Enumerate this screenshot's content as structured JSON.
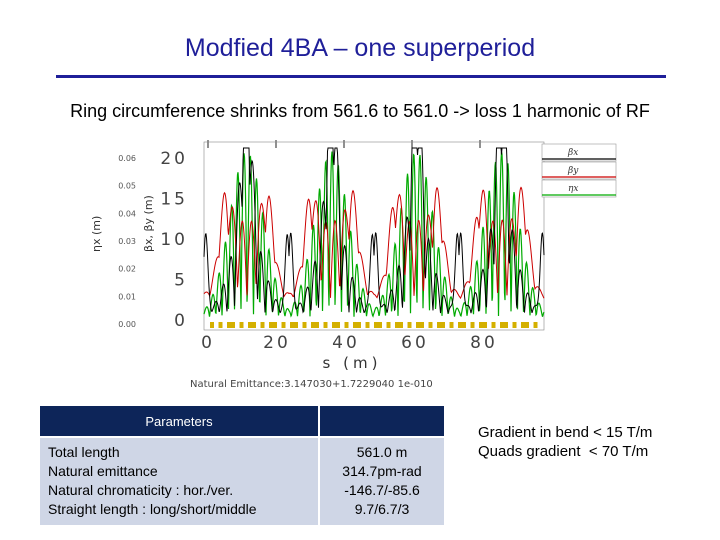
{
  "slide": {
    "title": "Modfied 4BA – one superperiod",
    "subtitle": "Ring circumference shrinks from 561.6 to 561.0 -> loss 1 harmonic of RF"
  },
  "plot": {
    "y_left_label": "ηx (m)",
    "y_mid_label": "βx, βy (m)",
    "x_label": "s (m)",
    "footer": "Natural Emittance:3.147030+1.7229040 1e-010",
    "y_left_ticks": [
      "0.06",
      "0.05",
      "0.04",
      "0.03",
      "0.02",
      "0.01",
      "0.00"
    ],
    "y_mid_ticks": [
      "20",
      "15",
      "10",
      "5",
      "0"
    ],
    "x_ticks": [
      "0",
      "20",
      "40",
      "60",
      "80"
    ],
    "legend": [
      {
        "label": "βx",
        "color": "#000000"
      },
      {
        "label": "βy",
        "color": "#cc0000"
      },
      {
        "label": "ηx",
        "color": "#00aa00"
      }
    ],
    "colors": {
      "beta_x": "#000000",
      "beta_y": "#cc0000",
      "eta_x": "#00aa00",
      "magnet": "#d4b000"
    }
  },
  "table": {
    "header_left": "Parameters",
    "header_right": "",
    "rows": [
      {
        "label": "Total length",
        "value": "561.0 m"
      },
      {
        "label": "Natural emittance",
        "value": "314.7pm-rad"
      },
      {
        "label": "Natural chromaticity  : hor./ver.",
        "value": "-146.7/-85.6"
      },
      {
        "label": "Straight length  : long/short/middle",
        "value": "9.7/6.7/3"
      }
    ]
  },
  "notes": {
    "line1": "Gradient in bend < 15 T/m",
    "line2": "Quads gradient  < 70 T/m"
  }
}
